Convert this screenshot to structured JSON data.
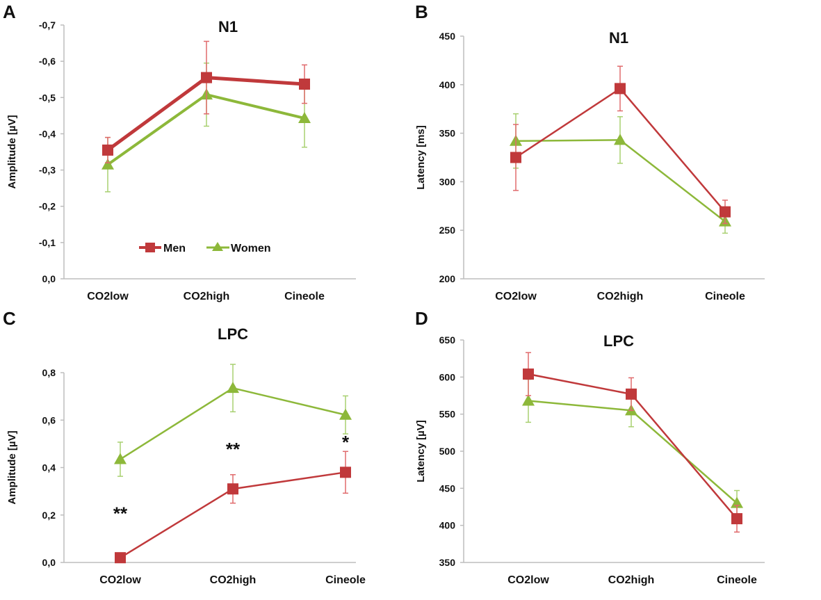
{
  "colors": {
    "men": "#c0393b",
    "women": "#8db83a",
    "men_err": "#e06a6c",
    "women_err": "#a8d070",
    "axis": "#bdbdbd"
  },
  "legend": {
    "position": "bottom-center of panel A",
    "men": "Men",
    "women": "Women"
  },
  "chart_data": [
    {
      "type": "line",
      "panel_label": "A",
      "title": "N1",
      "xlabel": "",
      "ylabel": "Amplitude [µV]",
      "categories": [
        "CO2low",
        "CO2high",
        "Cineole"
      ],
      "ylim": [
        0,
        -0.7
      ],
      "yticks": [
        "0,0",
        "-0,1",
        "-0,2",
        "-0,3",
        "-0,4",
        "-0,5",
        "-0,6",
        "-0,7"
      ],
      "ytick_values": [
        0,
        -0.1,
        -0.2,
        -0.3,
        -0.4,
        -0.5,
        -0.6,
        -0.7
      ],
      "series": [
        {
          "name": "Men",
          "values": [
            -0.355,
            -0.555,
            -0.537
          ],
          "errors": [
            0.035,
            0.1,
            0.053
          ]
        },
        {
          "name": "Women",
          "values": [
            -0.315,
            -0.508,
            -0.443
          ],
          "errors": [
            0.075,
            0.087,
            0.08
          ]
        }
      ],
      "annotations": []
    },
    {
      "type": "line",
      "panel_label": "B",
      "title": "N1",
      "xlabel": "",
      "ylabel": "Latency [ms]",
      "categories": [
        "CO2low",
        "CO2high",
        "Cineole"
      ],
      "ylim": [
        200,
        450
      ],
      "yticks": [
        "200",
        "250",
        "300",
        "350",
        "400",
        "450"
      ],
      "ytick_values": [
        200,
        250,
        300,
        350,
        400,
        450
      ],
      "series": [
        {
          "name": "Men",
          "values": [
            325,
            396,
            269
          ],
          "errors": [
            34,
            23,
            12
          ]
        },
        {
          "name": "Women",
          "values": [
            342,
            343,
            259
          ],
          "errors": [
            28,
            24,
            12
          ]
        }
      ],
      "annotations": []
    },
    {
      "type": "line",
      "panel_label": "C",
      "title": "LPC",
      "xlabel": "",
      "ylabel": "Amplitude [µV]",
      "categories": [
        "CO2low",
        "CO2high",
        "Cineole"
      ],
      "ylim": [
        0,
        0.8
      ],
      "yticks": [
        "0,0",
        "0,2",
        "0,4",
        "0,6",
        "0,8"
      ],
      "ytick_values": [
        0,
        0.2,
        0.4,
        0.6,
        0.8
      ],
      "series": [
        {
          "name": "Men",
          "values": [
            0.02,
            0.31,
            0.38
          ],
          "errors": [
            0.02,
            0.06,
            0.088
          ]
        },
        {
          "name": "Women",
          "values": [
            0.435,
            0.735,
            0.622
          ],
          "errors": [
            0.072,
            0.1,
            0.08
          ]
        }
      ],
      "annotations": [
        {
          "text": "**",
          "category": "CO2low",
          "y": 0.21
        },
        {
          "text": "**",
          "category": "CO2high",
          "y": 0.48
        },
        {
          "text": "*",
          "category": "Cineole",
          "y": 0.51
        }
      ]
    },
    {
      "type": "line",
      "panel_label": "D",
      "title": "LPC",
      "xlabel": "",
      "ylabel": "Latency [µV]",
      "categories": [
        "CO2low",
        "CO2high",
        "Cineole"
      ],
      "ylim": [
        350,
        650
      ],
      "yticks": [
        "350",
        "400",
        "450",
        "500",
        "550",
        "600",
        "650"
      ],
      "ytick_values": [
        350,
        400,
        450,
        500,
        550,
        600,
        650
      ],
      "series": [
        {
          "name": "Men",
          "values": [
            604,
            577,
            409
          ],
          "errors": [
            29,
            22,
            18
          ]
        },
        {
          "name": "Women",
          "values": [
            568,
            555,
            430
          ],
          "errors": [
            29,
            22,
            17
          ]
        }
      ],
      "annotations": []
    }
  ]
}
